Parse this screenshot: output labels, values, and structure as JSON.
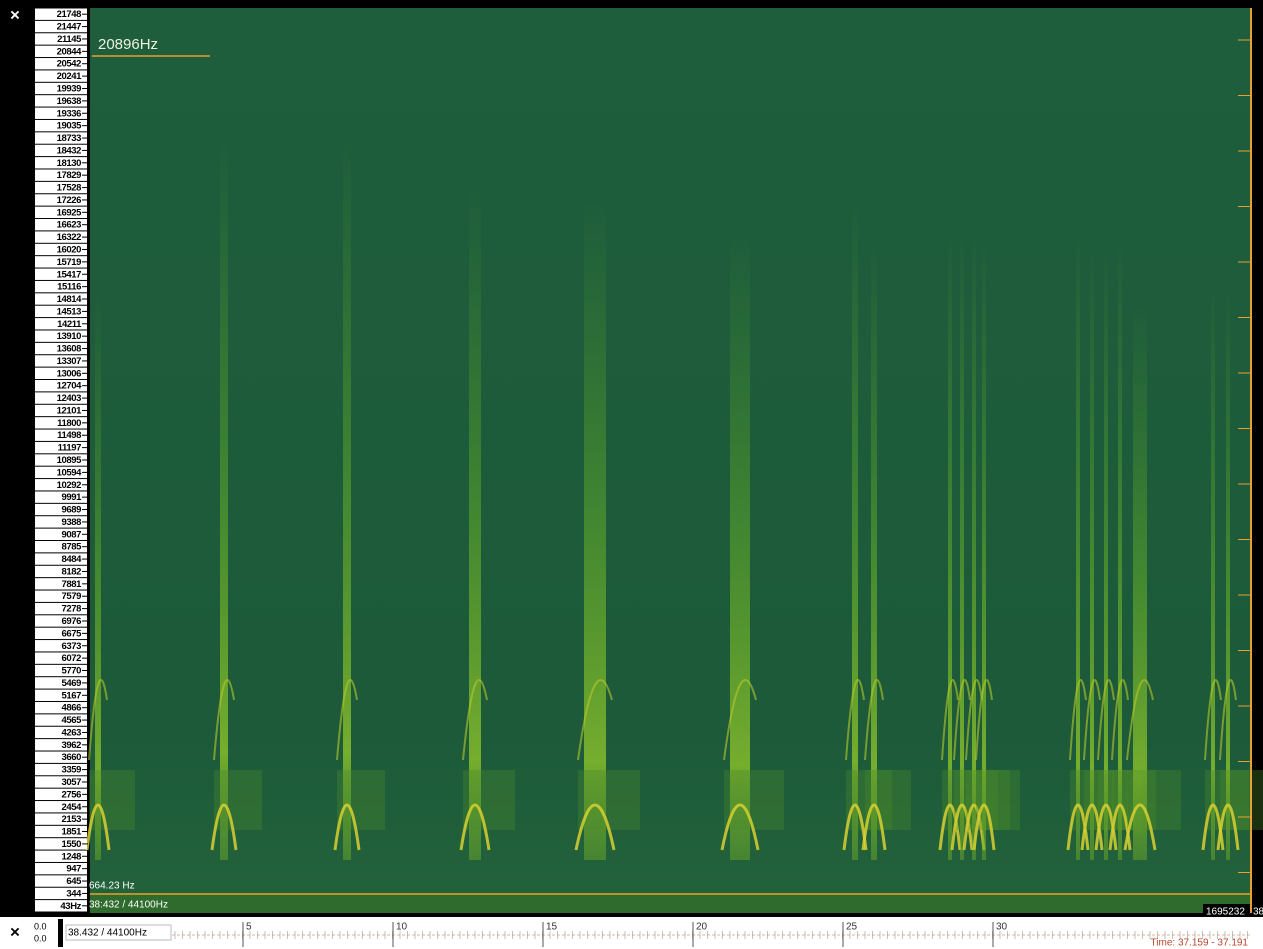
{
  "close_button": "×",
  "frequency_axis": {
    "labels": [
      "21748",
      "21447",
      "21145",
      "20844",
      "20542",
      "20241",
      "19939",
      "19638",
      "19336",
      "19035",
      "18733",
      "18432",
      "18130",
      "17829",
      "17528",
      "17226",
      "16925",
      "16623",
      "16322",
      "16020",
      "15719",
      "15417",
      "15116",
      "14814",
      "14513",
      "14211",
      "13910",
      "13608",
      "13307",
      "13006",
      "12704",
      "12403",
      "12101",
      "11800",
      "11498",
      "11197",
      "10895",
      "10594",
      "10292",
      "9991",
      "9689",
      "9388",
      "9087",
      "8785",
      "8484",
      "8182",
      "7881",
      "7579",
      "7278",
      "6976",
      "6675",
      "6373",
      "6072",
      "5770",
      "5469",
      "5167",
      "4866",
      "4565",
      "4263",
      "3962",
      "3660",
      "3359",
      "3057",
      "2756",
      "2454",
      "2153",
      "1851",
      "1550",
      "1248",
      "947",
      "645",
      "344",
      "43Hz"
    ]
  },
  "cursor_frequency": "20896Hz",
  "marker_frequency": "664.23 Hz",
  "position_label": "38:432 / 44100Hz",
  "sample_counter": "1695232",
  "sample_counter_cut": "38",
  "bottom_bar": {
    "close_button": "×",
    "level_top": "0.0",
    "level_bottom": "0.0",
    "position": "38.432 / 44100Hz",
    "time_labels": [
      5,
      10,
      15,
      20,
      25,
      30
    ],
    "time_range": "Time: 37.159 - 37.191"
  }
}
